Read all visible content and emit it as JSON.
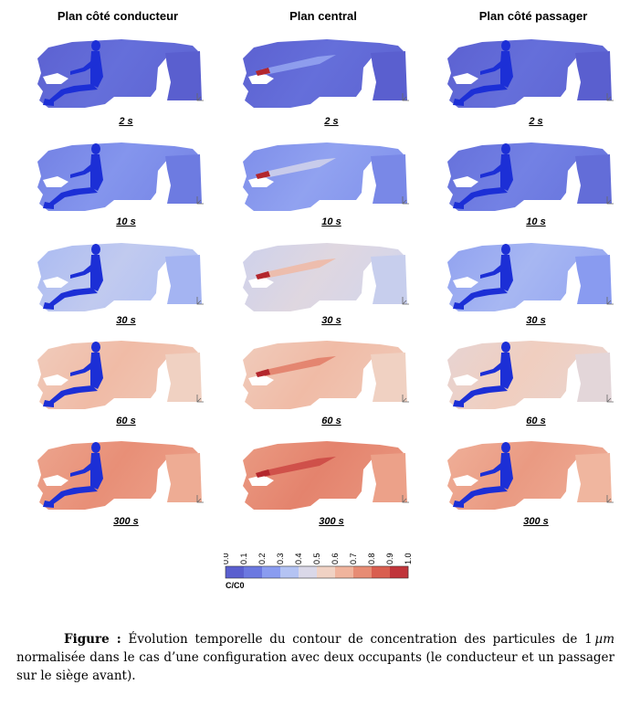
{
  "columns": [
    {
      "label": "Plan côté conducteur",
      "key": "conducteur"
    },
    {
      "label": "Plan central",
      "key": "central"
    },
    {
      "label": "Plan côté passager",
      "key": "passager"
    }
  ],
  "rows": [
    {
      "time": "2 s",
      "levels": [
        0.05,
        0.05,
        0.05
      ]
    },
    {
      "time": "10 s",
      "levels": [
        0.18,
        0.22,
        0.12
      ]
    },
    {
      "time": "30 s",
      "levels": [
        0.35,
        0.45,
        0.28
      ]
    },
    {
      "time": "60 s",
      "levels": [
        0.62,
        0.62,
        0.55
      ]
    },
    {
      "time": "300 s",
      "levels": [
        0.75,
        0.78,
        0.72
      ]
    }
  ],
  "colorbar": {
    "ticks": [
      "0.0",
      "0.1",
      "0.2",
      "0.3",
      "0.4",
      "0.5",
      "0.6",
      "0.7",
      "0.8",
      "0.9",
      "1.0"
    ],
    "label": "C/C0",
    "colors": [
      "#5a5fcf",
      "#6b78e0",
      "#8a9cf0",
      "#b4c3f3",
      "#dad8e8",
      "#f0d2c4",
      "#f0b49d",
      "#e78c74",
      "#d95e4f",
      "#c0343a"
    ]
  },
  "caption": {
    "prefix": "Figure :",
    "text_part1": " Évolution temporelle du contour de concentration des particules de 1",
    "unit": "µm",
    "text_part2": " normalisée dans le cas d’une configuration avec deux occupants (le conducteur et un passager sur le siège avant)."
  }
}
